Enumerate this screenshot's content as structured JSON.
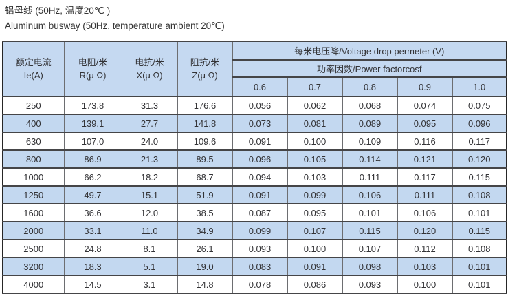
{
  "header": {
    "title_zh": "铝母线 (50Hz, 温度20℃ )",
    "title_en": "Aluminum busway (50Hz, temperature ambient 20℃)"
  },
  "table": {
    "col_headers": [
      {
        "line1": "额定电流",
        "line2": "Ie(A)"
      },
      {
        "line1": "电阻/米",
        "line2": "R(μ Ω)"
      },
      {
        "line1": "电抗/米",
        "line2": "X(μ Ω)"
      },
      {
        "line1": "阻抗/米",
        "line2": "Z(μ Ω)"
      }
    ],
    "voltage_drop_header": "每米电压降/Voltage drop permeter (V)",
    "power_factor_header": "功率因数/Power factorcosf",
    "power_factors": [
      "0.6",
      "0.7",
      "0.8",
      "0.9",
      "1.0"
    ],
    "rows": [
      [
        "250",
        "173.8",
        "31.3",
        "176.6",
        "0.056",
        "0.062",
        "0.068",
        "0.074",
        "0.075"
      ],
      [
        "400",
        "139.1",
        "27.7",
        "141.8",
        "0.073",
        "0.081",
        "0.089",
        "0.095",
        "0.096"
      ],
      [
        "630",
        "107.0",
        "24.0",
        "109.6",
        "0.091",
        "0.100",
        "0.109",
        "0.116",
        "0.117"
      ],
      [
        "800",
        "86.9",
        "21.3",
        "89.5",
        "0.096",
        "0.105",
        "0.114",
        "0.121",
        "0.120"
      ],
      [
        "1000",
        "66.2",
        "18.2",
        "68.7",
        "0.094",
        "0.103",
        "0.111",
        "0.117",
        "0.115"
      ],
      [
        "1250",
        "49.7",
        "15.1",
        "51.9",
        "0.091",
        "0.099",
        "0.106",
        "0.111",
        "0.108"
      ],
      [
        "1600",
        "36.6",
        "12.0",
        "38.5",
        "0.087",
        "0.095",
        "0.101",
        "0.106",
        "0.101"
      ],
      [
        "2000",
        "33.1",
        "11.0",
        "34.9",
        "0.099",
        "0.107",
        "0.115",
        "0.120",
        "0.115"
      ],
      [
        "2500",
        "24.8",
        "8.1",
        "26.1",
        "0.093",
        "0.100",
        "0.107",
        "0.112",
        "0.108"
      ],
      [
        "3200",
        "18.3",
        "5.1",
        "19.0",
        "0.083",
        "0.091",
        "0.098",
        "0.103",
        "0.101"
      ],
      [
        "4000",
        "14.5",
        "3.1",
        "14.8",
        "0.078",
        "0.086",
        "0.093",
        "0.100",
        "0.101"
      ]
    ]
  },
  "colors": {
    "header_bg": "#c5d9f1",
    "alt_row_bg": "#c3d8f0",
    "border_outer": "#262626",
    "border_inner": "#6d6e71",
    "text": "#333336"
  }
}
